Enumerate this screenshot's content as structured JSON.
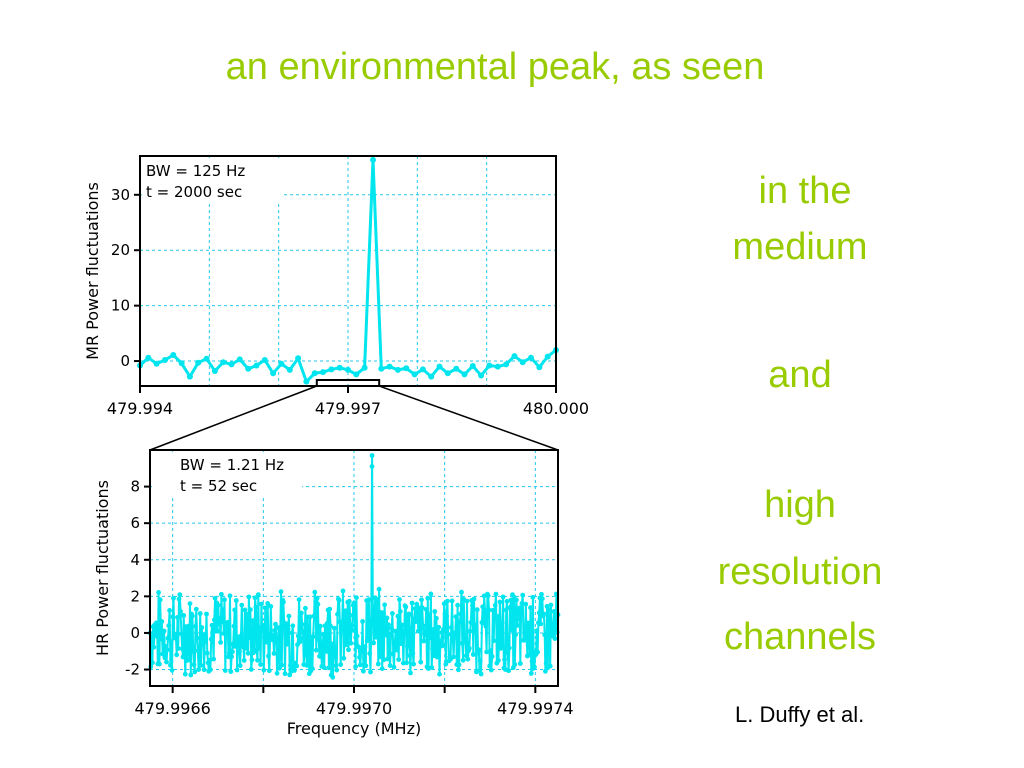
{
  "slide": {
    "title": "an environmental peak,  as seen",
    "side_lines": [
      "in the",
      "medium",
      "and",
      "high",
      "resolution",
      "channels"
    ],
    "credit": "L. Duffy et al."
  },
  "colors": {
    "title": "#99cc00",
    "data": "#00e5ee",
    "grid": "#22c8ee",
    "axis": "#000000"
  },
  "chart_data": [
    {
      "type": "line",
      "panel": "medium-resolution",
      "ylabel": "MR Power fluctuations",
      "xlabel": "",
      "annotation_lines": [
        "BW = 125 Hz",
        "t = 2000 sec"
      ],
      "xlim": [
        479.994,
        480.0
      ],
      "ylim": [
        -4.5,
        37
      ],
      "x_ticks": [
        479.994,
        479.997,
        480.0
      ],
      "x_tick_labels": [
        "479.994",
        "479.997",
        "480.000"
      ],
      "y_ticks": [
        0,
        10,
        20,
        30
      ],
      "y_tick_labels": [
        "0",
        "10",
        "20",
        "30"
      ],
      "grid": true,
      "zoom_window": [
        479.99655,
        479.99745
      ],
      "x": [
        479.994,
        479.99412,
        479.99424,
        479.99436,
        479.99448,
        479.9946,
        479.99472,
        479.99484,
        479.99496,
        479.99508,
        479.9952,
        479.99532,
        479.99544,
        479.99556,
        479.99568,
        479.9958,
        479.99592,
        479.99604,
        479.99616,
        479.99628,
        479.9964,
        479.99652,
        479.99664,
        479.99676,
        479.99688,
        479.997,
        479.99712,
        479.99724,
        479.99736,
        479.99748,
        479.9976,
        479.99772,
        479.99784,
        479.99796,
        479.99808,
        479.9982,
        479.99832,
        479.99844,
        479.99856,
        479.99868,
        479.9988,
        479.99892,
        479.99904,
        479.99916,
        479.99928,
        479.9994,
        479.99952,
        479.99964,
        479.99976,
        479.99988,
        480.0
      ],
      "y": [
        -0.8,
        0.6,
        -0.5,
        0.2,
        1.1,
        -0.4,
        -2.8,
        -0.3,
        0.4,
        -1.8,
        -0.2,
        -0.6,
        0.3,
        -1.4,
        -0.8,
        0.2,
        -2.2,
        -0.5,
        -1.6,
        0.5,
        -3.7,
        -2.2,
        -2.0,
        -1.5,
        -1.2,
        -1.6,
        -2.4,
        -1.2,
        36.3,
        -1.4,
        -1.0,
        -1.6,
        -1.3,
        -2.4,
        -1.5,
        -2.8,
        -1.0,
        -2.2,
        -1.4,
        -2.4,
        -0.9,
        -2.6,
        -0.8,
        -1.0,
        -0.6,
        0.9,
        -0.2,
        0.6,
        -1.1,
        0.8,
        2.0
      ]
    },
    {
      "type": "line",
      "panel": "high-resolution",
      "ylabel": "HR Power fluctuations",
      "xlabel": "Frequency (MHz)",
      "annotation_lines": [
        "BW = 1.21 Hz",
        "t = 52 sec"
      ],
      "xlim": [
        479.99655,
        479.99745
      ],
      "ylim": [
        -2.9,
        10
      ],
      "x_ticks": [
        479.9966,
        479.997,
        479.9974
      ],
      "x_tick_labels": [
        "479.9966",
        "479.9970",
        "479.9974"
      ],
      "minor_x_ticks": [
        479.9968,
        479.9972
      ],
      "y_ticks": [
        -2,
        0,
        2,
        4,
        6,
        8
      ],
      "y_tick_labels": [
        "-2",
        "0",
        "2",
        "4",
        "6",
        "8"
      ],
      "grid": true,
      "peak": {
        "x": 479.99704,
        "y": 9.7
      },
      "noise_range": [
        -2.5,
        2.5
      ]
    }
  ]
}
